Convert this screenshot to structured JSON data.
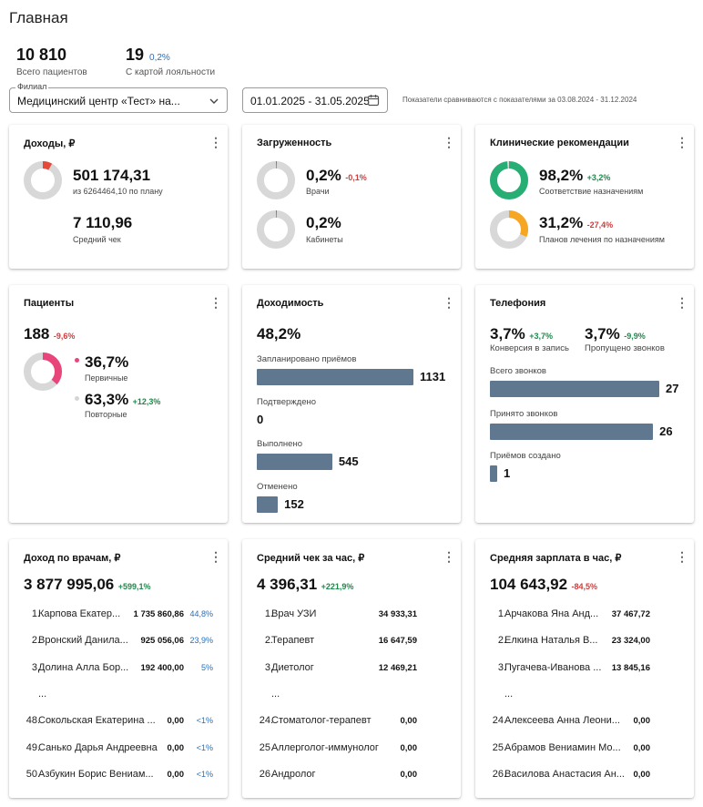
{
  "page": {
    "title": "Главная"
  },
  "summary": {
    "patients_total": "10 810",
    "patients_total_label": "Всего пациентов",
    "loyalty": "19",
    "loyalty_pct": "0,2%",
    "loyalty_label": "С картой лояльности"
  },
  "filters": {
    "branch_legend": "Филиал",
    "branch_value": "Медицинский центр «Тест» на...",
    "date_range": "01.01.2025 - 31.05.2025",
    "compare_note": "Показатели сравниваются с показателями за 03.08.2024 - 31.12.2024"
  },
  "income": {
    "title": "Доходы, ₽",
    "value": "501 174,31",
    "plan": "из 6264464,10 по плану",
    "pct": 8,
    "avg": "7 110,96",
    "avg_label": "Средний чек",
    "color": "#e5493a"
  },
  "load": {
    "title": "Загруженность",
    "doctors_value": "0,2%",
    "doctors_delta": "-0,1%",
    "doctors_label": "Врачи",
    "doctors_pct": 0.2,
    "cabinets_value": "0,2%",
    "cabinets_label": "Кабинеты",
    "cabinets_pct": 0.2,
    "color": "#e5493a"
  },
  "clinical": {
    "title": "Клинические рекомендации",
    "compliance_value": "98,2%",
    "compliance_delta": "+3,2%",
    "compliance_label": "Соответствие назначениям",
    "compliance_pct": 98.2,
    "compliance_color": "#27ae74",
    "plans_value": "31,2%",
    "plans_delta": "-27,4%",
    "plans_label": "Планов лечения по назначениям",
    "plans_pct": 31.2,
    "plans_color": "#f5a623"
  },
  "patients": {
    "title": "Пациенты",
    "value": "188",
    "delta": "-9,6%",
    "primary_value": "36,7%",
    "primary_label": "Первичные",
    "primary_pct": 36.7,
    "primary_color": "#e8457a",
    "repeat_value": "63,3%",
    "repeat_delta": "+12,3%",
    "repeat_label": "Повторные",
    "repeat_color": "#d5d5d5"
  },
  "profitability": {
    "title": "Доходимость",
    "value": "48,2%",
    "max": 1131,
    "rows": [
      {
        "label": "Запланировано приёмов",
        "value": 1131,
        "text": "1131"
      },
      {
        "label": "Подтверждено",
        "value": 0,
        "text": "0"
      },
      {
        "label": "Выполнено",
        "value": 545,
        "text": "545"
      },
      {
        "label": "Отменено",
        "value": 152,
        "text": "152"
      }
    ]
  },
  "telephony": {
    "title": "Телефония",
    "conv_value": "3,7%",
    "conv_delta": "+3,7%",
    "conv_label": "Конверсия в запись",
    "missed_value": "3,7%",
    "missed_delta": "-9,9%",
    "missed_label": "Пропущено звонков",
    "max": 27,
    "rows": [
      {
        "label": "Всего звонков",
        "value": 27,
        "text": "27"
      },
      {
        "label": "Принято звонков",
        "value": 26,
        "text": "26"
      },
      {
        "label": "Приёмов создано",
        "value": 1,
        "text": "1"
      }
    ]
  },
  "income_doctors": {
    "title": "Доход по врачам, ₽",
    "value": "3 877 995,06",
    "delta": "+599,1%",
    "rows": [
      {
        "rank": "1.",
        "name": "Карпова Екатер...",
        "value": "1 735 860,86",
        "pct": "44,8%"
      },
      {
        "rank": "2.",
        "name": "Вронский Данила...",
        "value": "925 056,06",
        "pct": "23,9%"
      },
      {
        "rank": "3.",
        "name": "Долина Алла Бор...",
        "value": "192 400,00",
        "pct": "5%"
      },
      {
        "rank": "...",
        "name": "",
        "value": "",
        "pct": ""
      },
      {
        "rank": "48.",
        "name": "Сокольская Екатерина ...",
        "value": "0,00",
        "pct": "<1%"
      },
      {
        "rank": "49.",
        "name": "Санько Дарья Андреевна",
        "value": "0,00",
        "pct": "<1%"
      },
      {
        "rank": "50.",
        "name": "Азбукин Борис Вениам...",
        "value": "0,00",
        "pct": "<1%"
      }
    ]
  },
  "avg_check": {
    "title": "Средний чек за час, ₽",
    "value": "4 396,31",
    "delta": "+221,9%",
    "rows": [
      {
        "rank": "1.",
        "name": "Врач УЗИ",
        "value": "34 933,31"
      },
      {
        "rank": "2.",
        "name": "Терапевт",
        "value": "16 647,59"
      },
      {
        "rank": "3.",
        "name": "Диетолог",
        "value": "12 469,21"
      },
      {
        "rank": "...",
        "name": "",
        "value": ""
      },
      {
        "rank": "24.",
        "name": "Стоматолог-терапевт",
        "value": "0,00"
      },
      {
        "rank": "25.",
        "name": "Аллерголог-иммунолог",
        "value": "0,00"
      },
      {
        "rank": "26.",
        "name": "Андролог",
        "value": "0,00"
      }
    ]
  },
  "avg_salary": {
    "title": "Средняя зарплата в час, ₽",
    "value": "104 643,92",
    "delta": "-84,5%",
    "rows": [
      {
        "rank": "1.",
        "name": "Арчакова Яна Анд...",
        "value": "37 467,72"
      },
      {
        "rank": "2.",
        "name": "Елкина Наталья В...",
        "value": "23 324,00"
      },
      {
        "rank": "3.",
        "name": "Пугачева-Иванова ...",
        "value": "13 845,16"
      },
      {
        "rank": "...",
        "name": "",
        "value": ""
      },
      {
        "rank": "24.",
        "name": "Алексеева Анна Леони...",
        "value": "0,00"
      },
      {
        "rank": "25.",
        "name": "Абрамов Вениамин Мо...",
        "value": "0,00"
      },
      {
        "rank": "26.",
        "name": "Василова Анастасия Ан...",
        "value": "0,00"
      }
    ]
  }
}
